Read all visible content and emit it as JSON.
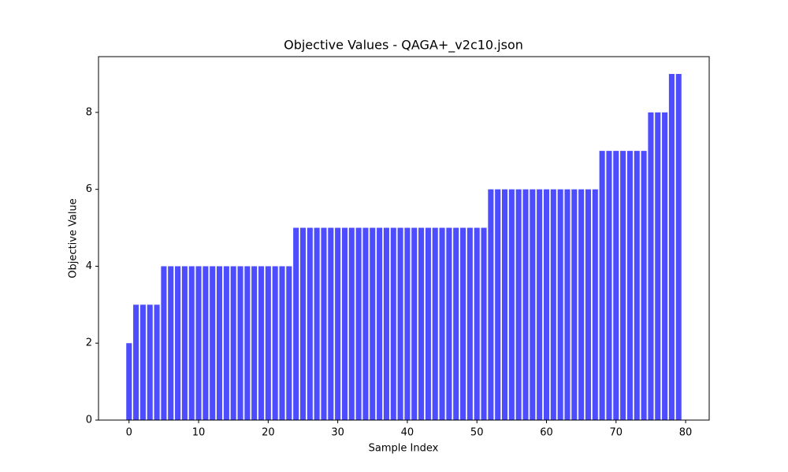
{
  "chart_data": {
    "type": "bar",
    "title": "Objective Values - QAGA+_v2c10.json",
    "x_label": "Sample Index",
    "y_label": "Objective Value",
    "x": [
      0,
      1,
      2,
      3,
      4,
      5,
      6,
      7,
      8,
      9,
      10,
      11,
      12,
      13,
      14,
      15,
      16,
      17,
      18,
      19,
      20,
      21,
      22,
      23,
      24,
      25,
      26,
      27,
      28,
      29,
      30,
      31,
      32,
      33,
      34,
      35,
      36,
      37,
      38,
      39,
      40,
      41,
      42,
      43,
      44,
      45,
      46,
      47,
      48,
      49,
      50,
      51,
      52,
      53,
      54,
      55,
      56,
      57,
      58,
      59,
      60,
      61,
      62,
      63,
      64,
      65,
      66,
      67,
      68,
      69,
      70,
      71,
      72,
      73,
      74,
      75,
      76,
      77,
      78,
      79
    ],
    "values": [
      2,
      3,
      3,
      3,
      3,
      4,
      4,
      4,
      4,
      4,
      4,
      4,
      4,
      4,
      4,
      4,
      4,
      4,
      4,
      4,
      4,
      4,
      4,
      4,
      5,
      5,
      5,
      5,
      5,
      5,
      5,
      5,
      5,
      5,
      5,
      5,
      5,
      5,
      5,
      5,
      5,
      5,
      5,
      5,
      5,
      5,
      5,
      5,
      5,
      5,
      5,
      5,
      6,
      6,
      6,
      6,
      6,
      6,
      6,
      6,
      6,
      6,
      6,
      6,
      6,
      6,
      6,
      6,
      7,
      7,
      7,
      7,
      7,
      7,
      7,
      8,
      8,
      8,
      9,
      9
    ],
    "color": "#4d4dff",
    "xlim": [
      -4.39,
      83.39
    ],
    "xticks": [
      0,
      10,
      20,
      30,
      40,
      50,
      60,
      70,
      80
    ],
    "ylim": [
      0,
      9.45
    ],
    "yticks": [
      0,
      2,
      4,
      6,
      8
    ]
  }
}
